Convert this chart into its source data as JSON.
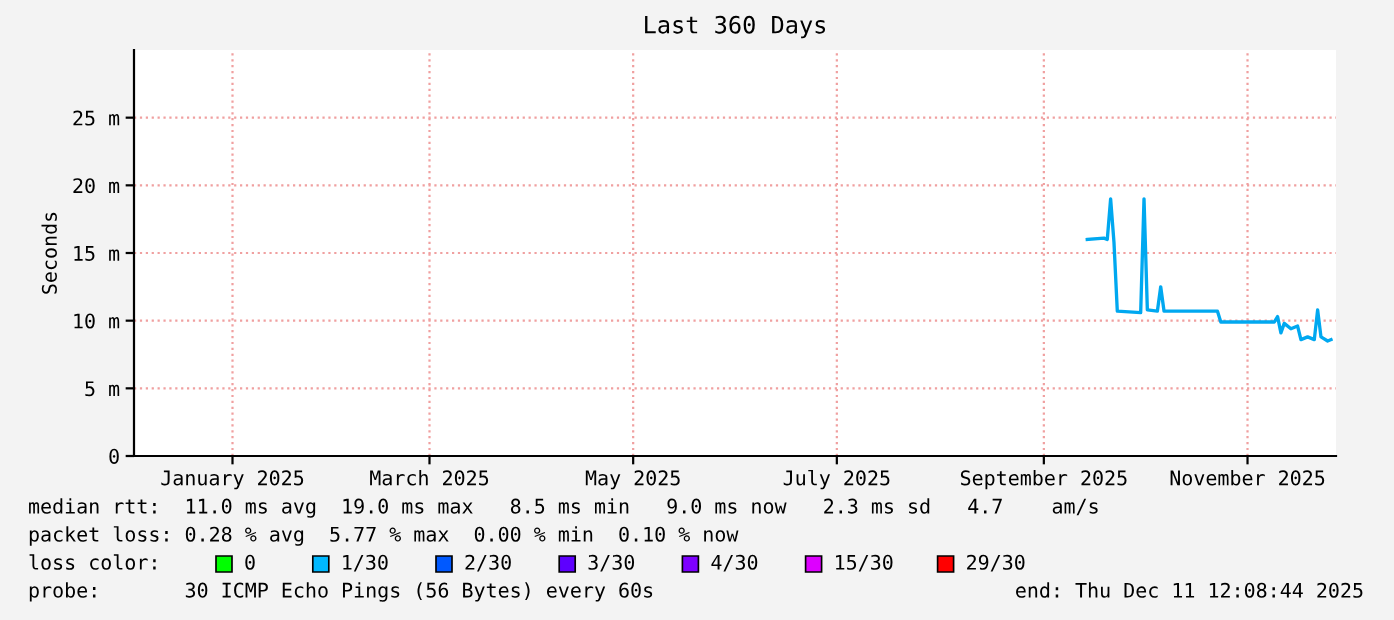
{
  "chart_data": {
    "type": "line",
    "title": "Last 360 Days",
    "ylabel": "Seconds",
    "x": [
      "2025-09-28",
      "2025-10-03",
      "2025-10-04",
      "2025-10-05",
      "2025-10-06",
      "2025-10-07",
      "2025-10-14",
      "2025-10-15",
      "2025-10-16",
      "2025-10-19",
      "2025-10-20",
      "2025-10-21",
      "2025-11-06",
      "2025-11-07",
      "2025-11-23",
      "2025-11-24",
      "2025-11-25",
      "2025-11-26",
      "2025-11-28",
      "2025-11-30",
      "2025-12-01",
      "2025-12-03",
      "2025-12-05",
      "2025-12-06",
      "2025-12-07",
      "2025-12-09",
      "2025-12-10"
    ],
    "series": [
      {
        "color": "#00a8f0",
        "values": [
          16.0,
          16.1,
          16.0,
          19.0,
          15.8,
          10.7,
          10.6,
          19.0,
          10.8,
          10.7,
          12.5,
          10.7,
          10.7,
          9.9,
          9.9,
          10.3,
          9.1,
          9.8,
          9.4,
          9.6,
          8.6,
          8.8,
          8.6,
          10.8,
          8.8,
          8.5,
          8.6
        ]
      },
      {
        "name": "0",
        "color": "#00ff00",
        "values": [
          null,
          null,
          null,
          null,
          null,
          null,
          null,
          null,
          null,
          null,
          null,
          null,
          null,
          null,
          null,
          null,
          null,
          null,
          null,
          null,
          null,
          null,
          null,
          null,
          null,
          null,
          null
        ]
      },
      {
        "name": "1/30",
        "color": "#00b8ff",
        "values": [
          null,
          null,
          null,
          null,
          null,
          null,
          null,
          null,
          null,
          null,
          null,
          null,
          null,
          null,
          null,
          null,
          null,
          null,
          null,
          null,
          null,
          null,
          null,
          null,
          null,
          null,
          null
        ]
      },
      {
        "name": "2/30",
        "color": "#0059ff",
        "values": [
          null,
          null,
          null,
          null,
          null,
          null,
          null,
          null,
          null,
          null,
          null,
          null,
          null,
          null,
          null,
          null,
          null,
          null,
          null,
          null,
          null,
          null,
          null,
          null,
          null,
          null,
          null
        ]
      },
      {
        "name": "3/30",
        "color": "#5e00ff",
        "values": [
          null,
          null,
          null,
          null,
          null,
          null,
          null,
          null,
          null,
          null,
          null,
          null,
          null,
          null,
          null,
          null,
          null,
          null,
          null,
          null,
          null,
          null,
          null,
          null,
          null,
          null,
          null
        ]
      },
      {
        "name": "4/30",
        "color": "#7e00ff",
        "values": [
          null,
          null,
          null,
          null,
          null,
          null,
          null,
          null,
          null,
          null,
          null,
          null,
          null,
          null,
          null,
          null,
          null,
          null,
          null,
          null,
          null,
          null,
          null,
          null,
          null,
          null,
          null
        ]
      },
      {
        "name": "15/30",
        "color": "#dd00ff",
        "values": [
          null,
          null,
          null,
          null,
          null,
          null,
          null,
          null,
          null,
          null,
          null,
          null,
          null,
          null,
          null,
          null,
          null,
          null,
          null,
          null,
          null,
          null,
          null,
          null,
          null,
          null,
          null
        ]
      },
      {
        "name": "29/30",
        "color": "#ff0000",
        "values": [
          null,
          null,
          null,
          null,
          null,
          null,
          null,
          null,
          null,
          null,
          null,
          null,
          null,
          null,
          null,
          null,
          null,
          null,
          null,
          null,
          null,
          null,
          null,
          null,
          null,
          null,
          null
        ]
      }
    ],
    "legend_title": "loss color:",
    "legend": "bottom",
    "xlim": [
      "2024-12-16T12:00",
      "2025-12-11T12:00"
    ],
    "xticks": [
      {
        "value": "2025-01-15",
        "label": "January 2025"
      },
      {
        "value": "2025-03-15",
        "label": "March 2025"
      },
      {
        "value": "2025-05-15",
        "label": "May 2025"
      },
      {
        "value": "2025-07-15",
        "label": "July 2025"
      },
      {
        "value": "2025-09-15",
        "label": "September 2025"
      },
      {
        "value": "2025-11-15",
        "label": "November 2025"
      }
    ],
    "ylim": [
      0,
      30
    ],
    "yticks": [
      {
        "value": 0,
        "label": "0"
      },
      {
        "value": 5,
        "label": "5 m"
      },
      {
        "value": 10,
        "label": "10 m"
      },
      {
        "value": 15,
        "label": "15 m"
      },
      {
        "value": 20,
        "label": "20 m"
      },
      {
        "value": 25,
        "label": "25 m"
      }
    ],
    "grid": true,
    "annotations": [
      "median rtt:  11.0 ms avg  19.0 ms max   8.5 ms min   9.0 ms now   2.3 ms sd   4.7    am/s",
      "packet loss: 0.28 % avg  5.77 % max  0.00 % min  0.10 % now",
      "probe:       30 ICMP Echo Pings (56 Bytes) every 60s",
      "end: Thu Dec 11 12:08:44 2025"
    ]
  }
}
